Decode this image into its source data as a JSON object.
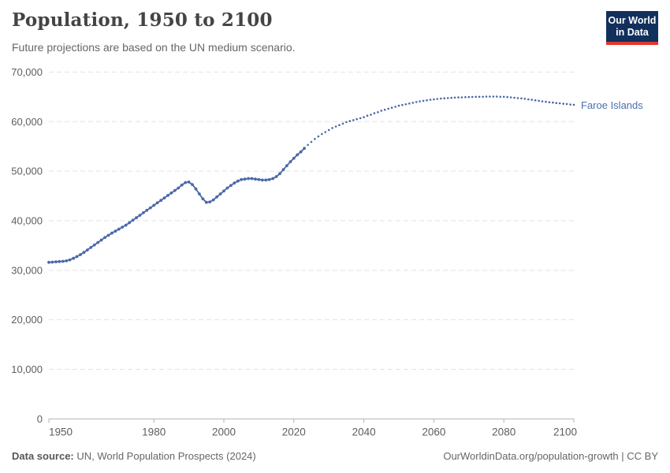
{
  "header": {
    "title": "Population, 1950 to 2100",
    "subtitle": "Future projections are based on the UN medium scenario.",
    "logo": {
      "line1": "Our World",
      "line2": "in Data",
      "bg_color": "#12305c",
      "accent_color": "#e2382e"
    }
  },
  "series_label": "Faroe Islands",
  "footer": {
    "datasource_label": "Data source:",
    "datasource_value": " UN, World Population Prospects (2024)",
    "link": "OurWorldinData.org/population-growth | CC BY"
  },
  "chart_data": {
    "type": "line",
    "title": "Population, 1950 to 2100",
    "subtitle": "Future projections are based on the UN medium scenario.",
    "entity": "Faroe Islands",
    "xlabel": "",
    "ylabel": "",
    "xlim": [
      1950,
      2100
    ],
    "ylim": [
      0,
      70000
    ],
    "grid": true,
    "legend_position": "right-end-of-line",
    "x_ticks": [
      1950,
      1980,
      2000,
      2020,
      2040,
      2060,
      2080,
      2100
    ],
    "y_ticks": [
      {
        "value": 0,
        "label": "0"
      },
      {
        "value": 10000,
        "label": "10,000"
      },
      {
        "value": 20000,
        "label": "20,000"
      },
      {
        "value": 30000,
        "label": "30,000"
      },
      {
        "value": 40000,
        "label": "40,000"
      },
      {
        "value": 50000,
        "label": "50,000"
      },
      {
        "value": 60000,
        "label": "60,000"
      },
      {
        "value": 70000,
        "label": "70,000"
      }
    ],
    "colors": {
      "line": "#4a69a9",
      "label": "#4a6fb1",
      "grid": "#e2e2e2",
      "axis": "#b3b3b3",
      "tick_text": "#5e5e5e"
    },
    "series": [
      {
        "name": "Faroe Islands (historical estimates)",
        "style": "solid-with-markers",
        "start_year": 1950,
        "step": 1,
        "values": [
          31600,
          31650,
          31700,
          31750,
          31800,
          31900,
          32100,
          32400,
          32750,
          33150,
          33600,
          34100,
          34600,
          35100,
          35600,
          36100,
          36600,
          37050,
          37500,
          37900,
          38300,
          38700,
          39100,
          39600,
          40100,
          40600,
          41100,
          41600,
          42100,
          42600,
          43100,
          43600,
          44100,
          44600,
          45100,
          45600,
          46100,
          46600,
          47200,
          47700,
          47800,
          47300,
          46400,
          45400,
          44400,
          43700,
          43800,
          44200,
          44800,
          45400,
          46000,
          46600,
          47100,
          47600,
          48000,
          48300,
          48400,
          48500,
          48500,
          48400,
          48300,
          48200,
          48200,
          48300,
          48500,
          48900,
          49500,
          50300,
          51100,
          51900,
          52600,
          53300,
          53900,
          54600
        ]
      },
      {
        "name": "Faroe Islands (UN medium scenario projection)",
        "style": "dotted",
        "start_year": 2024,
        "step": 1,
        "values": [
          55300,
          55900,
          56500,
          57000,
          57500,
          57900,
          58300,
          58700,
          59000,
          59300,
          59600,
          59900,
          60100,
          60300,
          60500,
          60700,
          60900,
          61200,
          61400,
          61700,
          61900,
          62200,
          62400,
          62600,
          62800,
          63000,
          63200,
          63350,
          63500,
          63650,
          63800,
          63950,
          64100,
          64200,
          64300,
          64400,
          64500,
          64580,
          64650,
          64700,
          64750,
          64800,
          64850,
          64880,
          64900,
          64930,
          64950,
          64980,
          65000,
          65000,
          65000,
          65050,
          65050,
          65050,
          65050,
          65000,
          65000,
          64950,
          64900,
          64820,
          64750,
          64680,
          64600,
          64500,
          64400,
          64300,
          64200,
          64100,
          64000,
          63900,
          63850,
          63750,
          63700,
          63600,
          63550,
          63450,
          63400
        ]
      }
    ]
  }
}
